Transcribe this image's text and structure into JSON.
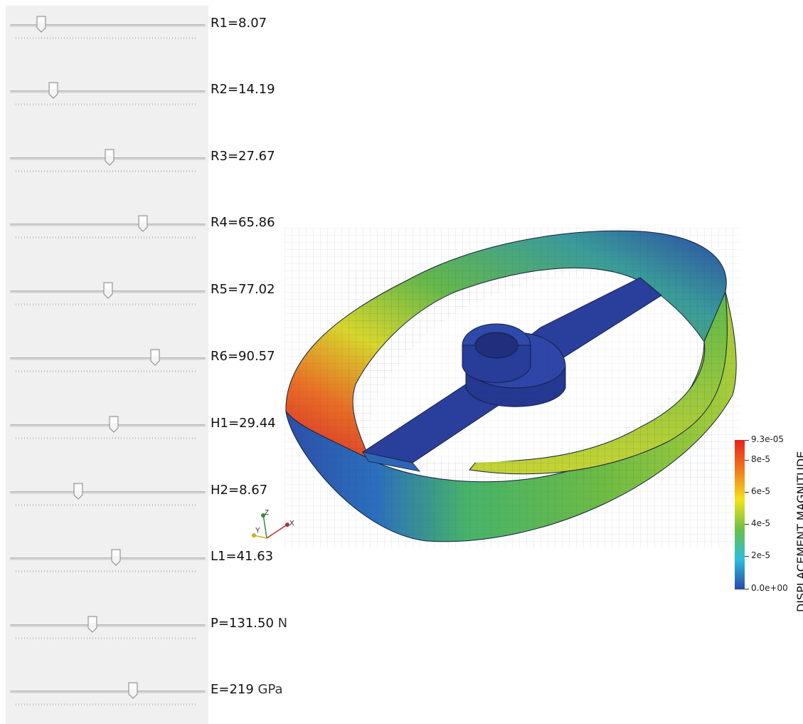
{
  "sliders": [
    {
      "name": "R1",
      "value": "8.07",
      "unit": "",
      "position": 0.16
    },
    {
      "name": "R2",
      "value": "14.19",
      "unit": "",
      "position": 0.22
    },
    {
      "name": "R3",
      "value": "27.67",
      "unit": "",
      "position": 0.51
    },
    {
      "name": "R4",
      "value": "65.86",
      "unit": "",
      "position": 0.68
    },
    {
      "name": "R5",
      "value": "77.02",
      "unit": "",
      "position": 0.5
    },
    {
      "name": "R6",
      "value": "90.57",
      "unit": "",
      "position": 0.74
    },
    {
      "name": "H1",
      "value": "29.44",
      "unit": "",
      "position": 0.53
    },
    {
      "name": "H2",
      "value": "8.67",
      "unit": "",
      "position": 0.35
    },
    {
      "name": "L1",
      "value": "41.63",
      "unit": "",
      "position": 0.54
    },
    {
      "name": "P",
      "value": "131.50",
      "unit": "N",
      "position": 0.42
    },
    {
      "name": "E",
      "value": "219",
      "unit": "GPa",
      "position": 0.63
    }
  ],
  "colorbar": {
    "title": "DISPLACEMENT MAGNITUDE",
    "labels": [
      "9.3e-05",
      "8e-5",
      "6e-5",
      "4e-5",
      "2e-5",
      "0.0e+00"
    ],
    "colors": [
      "#e8221e",
      "#f07a1c",
      "#f4e21a",
      "#69c046",
      "#2cbde0",
      "#2849a8"
    ]
  },
  "axes": {
    "x": "X",
    "y": "Y",
    "z": "Z"
  }
}
